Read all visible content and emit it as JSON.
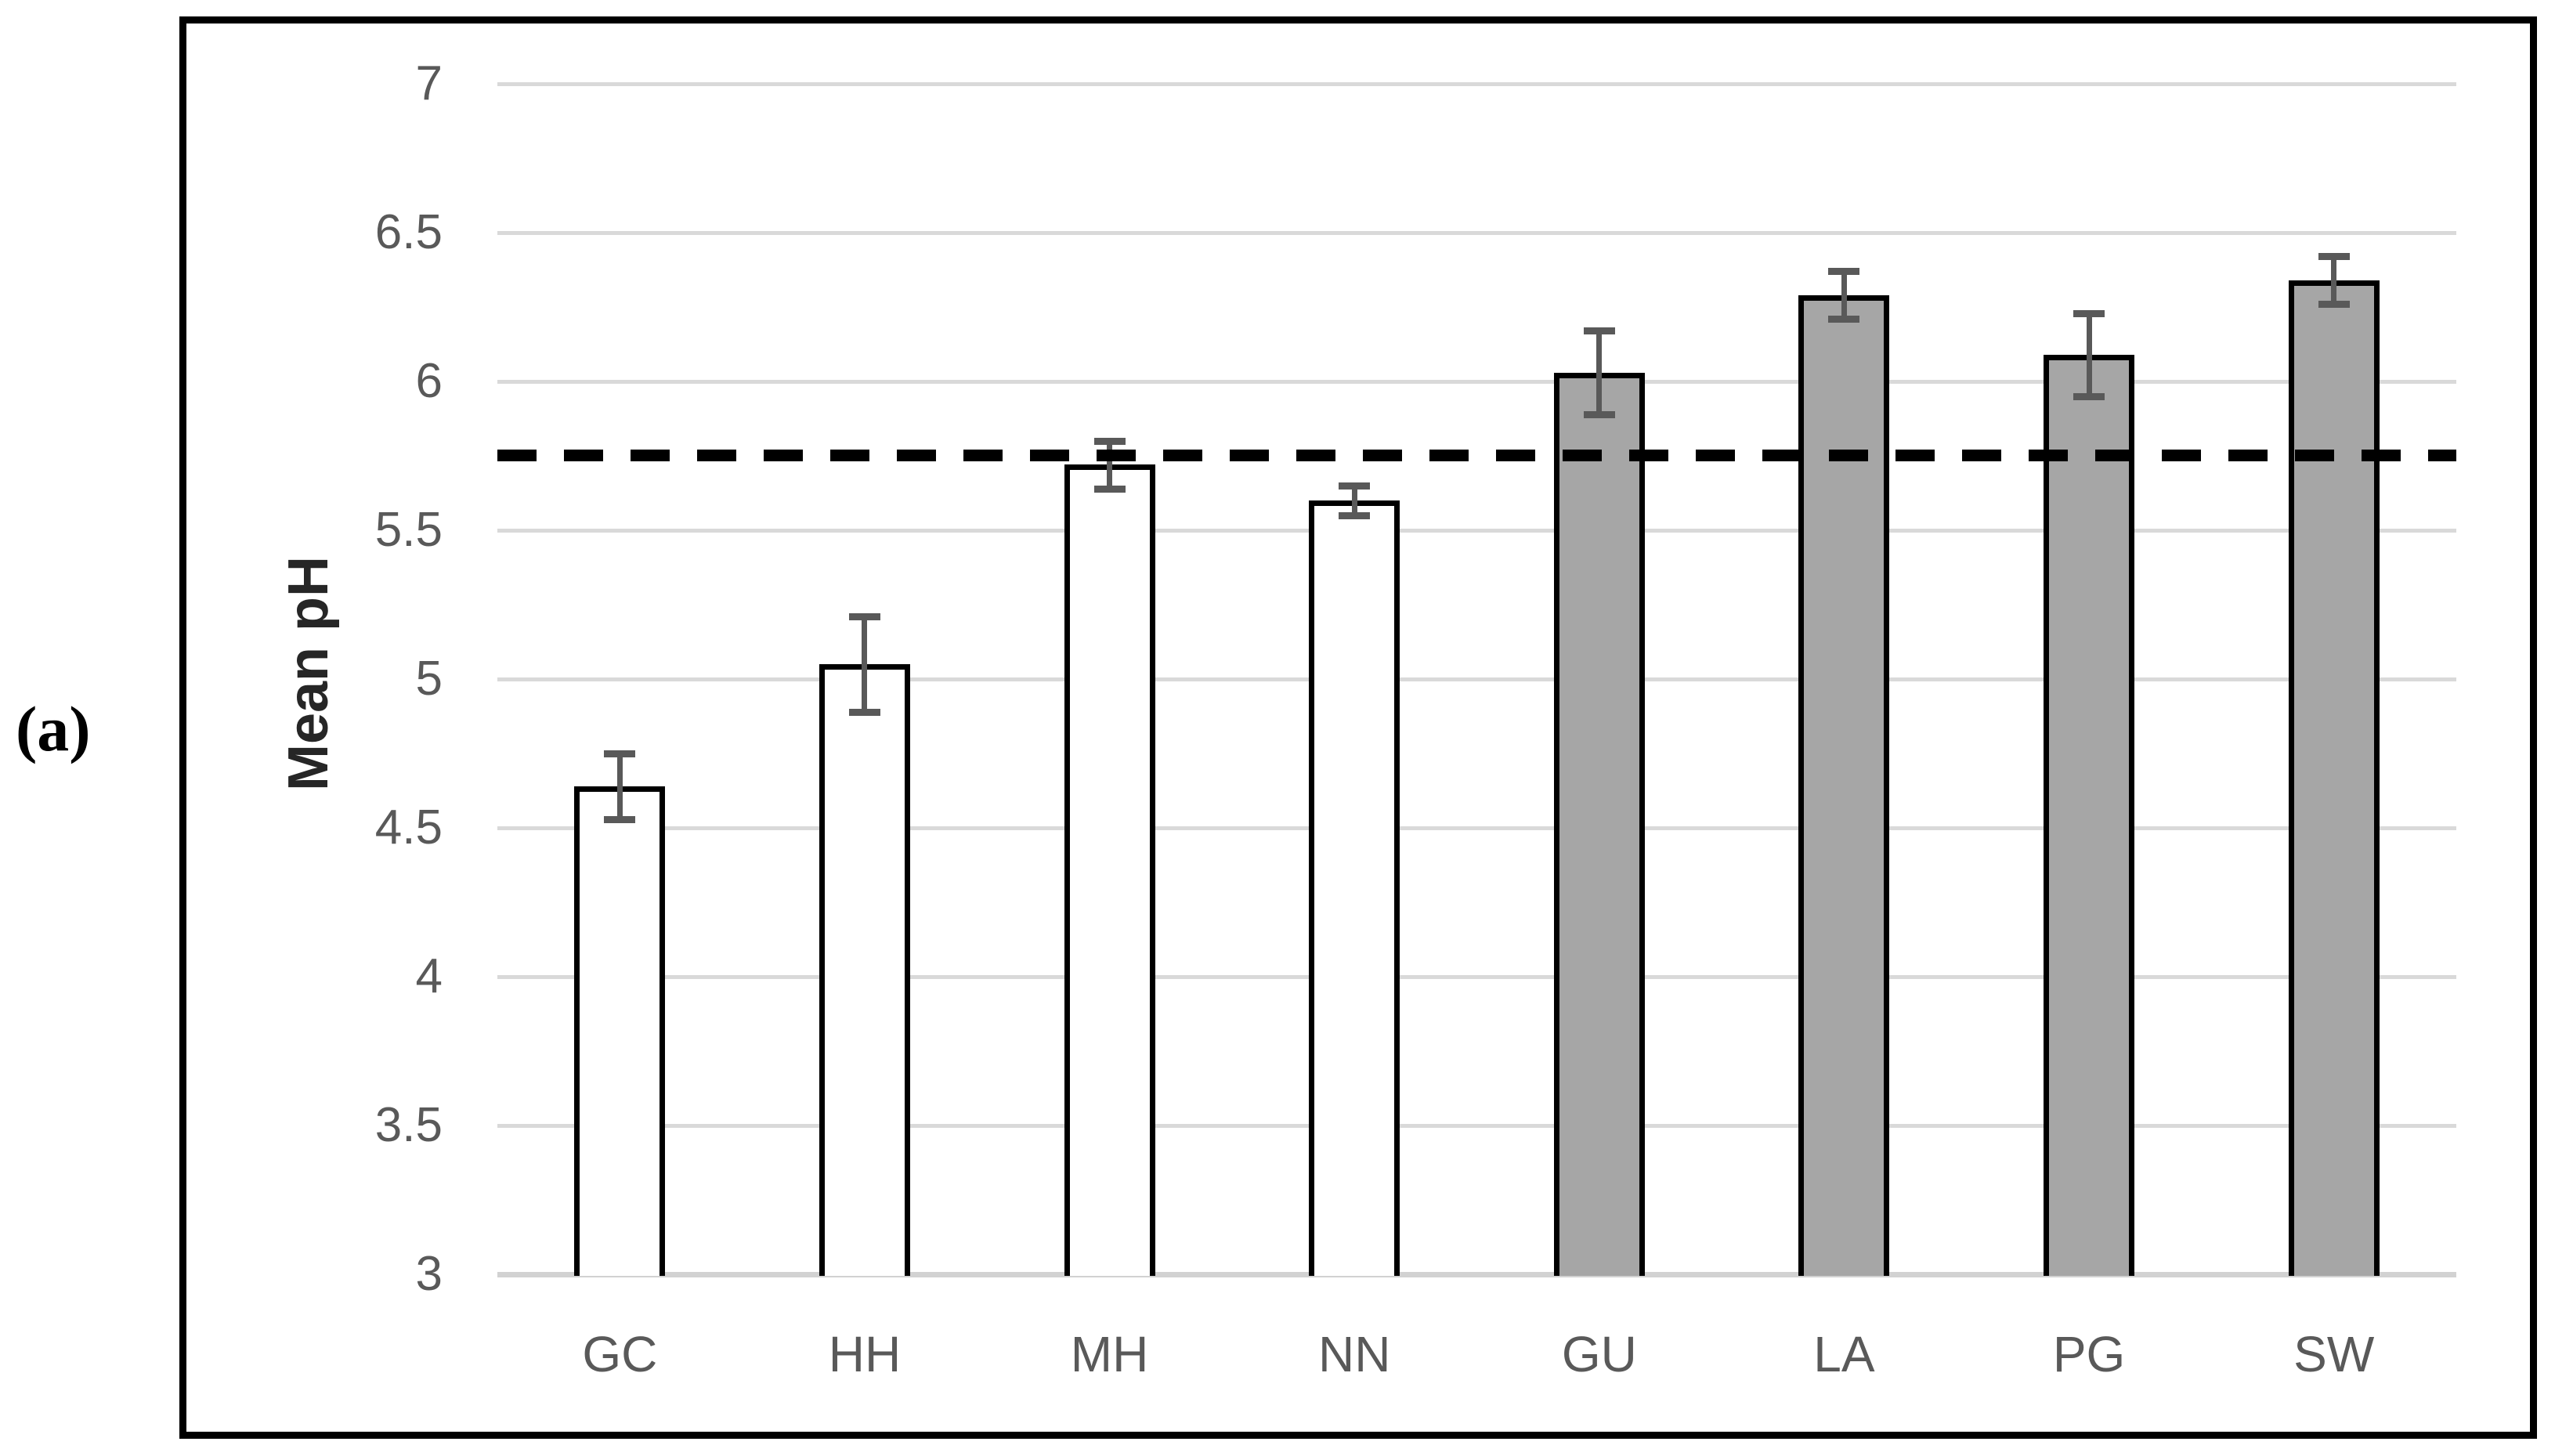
{
  "figure_label": "(a)",
  "chart_data": {
    "type": "bar",
    "title": "",
    "xlabel": "",
    "ylabel": "Mean pH",
    "categories": [
      "GC",
      "HH",
      "MH",
      "NN",
      "GU",
      "LA",
      "PG",
      "SW"
    ],
    "values": [
      4.64,
      5.05,
      5.72,
      5.6,
      6.03,
      6.29,
      6.09,
      6.34
    ],
    "error_bars": [
      0.11,
      0.16,
      0.08,
      0.05,
      0.14,
      0.08,
      0.14,
      0.08
    ],
    "bar_styles": [
      "open",
      "open",
      "open",
      "open",
      "filled",
      "filled",
      "filled",
      "filled"
    ],
    "ylim": [
      3,
      7
    ],
    "ytick_step": 0.5,
    "yticks": [
      "7",
      "6.5",
      "6",
      "5.5",
      "5",
      "4.5",
      "4",
      "3.5",
      "3"
    ],
    "reference_line": {
      "value": 5.75,
      "style": "dashed"
    },
    "grid": "horizontal",
    "legend": "none"
  },
  "colors": {
    "open_bar_fill": "#ffffff",
    "filled_bar_fill": "#a6a6a6",
    "bar_border": "#000000",
    "error_bar": "#595959",
    "gridline": "#d9d9d9",
    "baseline": "#d2d2d2",
    "tick_label": "#595959",
    "axis_title": "#262626",
    "reference_line": "#000000",
    "frame_border": "#000000"
  }
}
